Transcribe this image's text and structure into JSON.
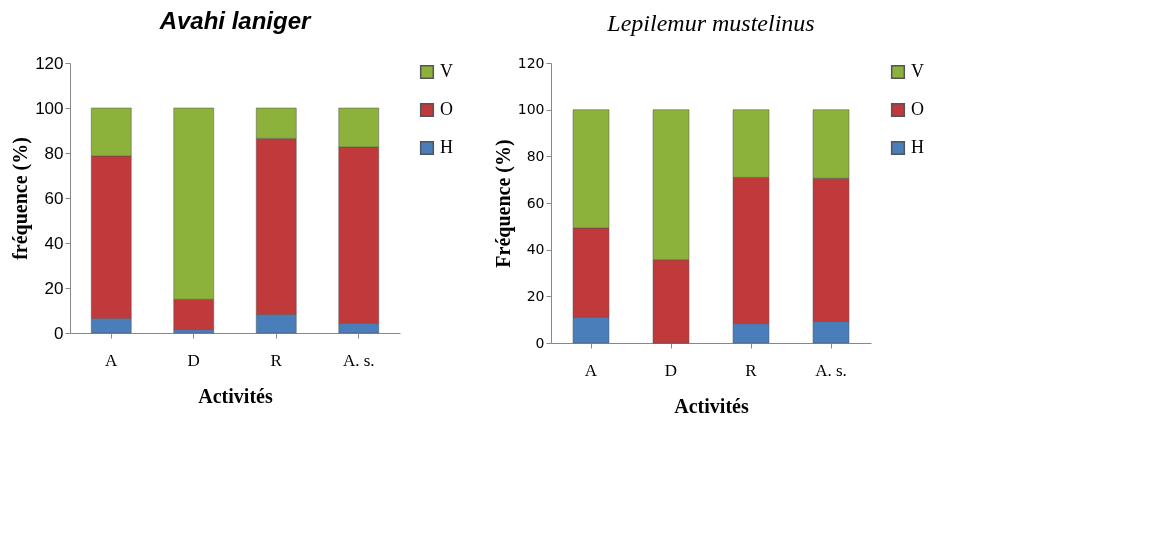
{
  "chart_data": [
    {
      "type": "bar",
      "title": "Avahi laniger",
      "xlabel": "Activités",
      "ylabel": "fréquence (%)",
      "categories": [
        "A",
        "D",
        "R",
        "A. s."
      ],
      "stacked": true,
      "legend": "right",
      "grid": false,
      "ylim": [
        0,
        120
      ],
      "yticks": [
        0,
        20,
        40,
        60,
        80,
        100,
        120
      ],
      "series": [
        {
          "name": "H",
          "color": "#4a7ebb",
          "values": [
            6.5,
            1.5,
            8.2,
            4.3
          ]
        },
        {
          "name": "O",
          "color": "#c0393b",
          "values": [
            72.2,
            13.5,
            78.3,
            78.4
          ]
        },
        {
          "name": "V",
          "color": "#8db23b",
          "values": [
            21.3,
            85,
            13.5,
            17.3
          ]
        }
      ]
    },
    {
      "type": "bar",
      "title": "Lepilemur mustelinus",
      "xlabel": "Activités",
      "ylabel": "Fréquence (%)",
      "categories": [
        "A",
        "D",
        "R",
        "A. s."
      ],
      "stacked": true,
      "legend": "right",
      "grid": false,
      "ylim": [
        0,
        120
      ],
      "yticks": [
        0,
        20,
        40,
        60,
        80,
        100,
        120
      ],
      "series": [
        {
          "name": "H",
          "color": "#4a7ebb",
          "values": [
            11,
            0,
            8.3,
            9.2
          ]
        },
        {
          "name": "O",
          "color": "#c0393b",
          "values": [
            38.3,
            35.7,
            62.7,
            61.4
          ]
        },
        {
          "name": "V",
          "color": "#8db23b",
          "values": [
            50.7,
            64.3,
            29,
            29.4
          ]
        }
      ]
    }
  ]
}
